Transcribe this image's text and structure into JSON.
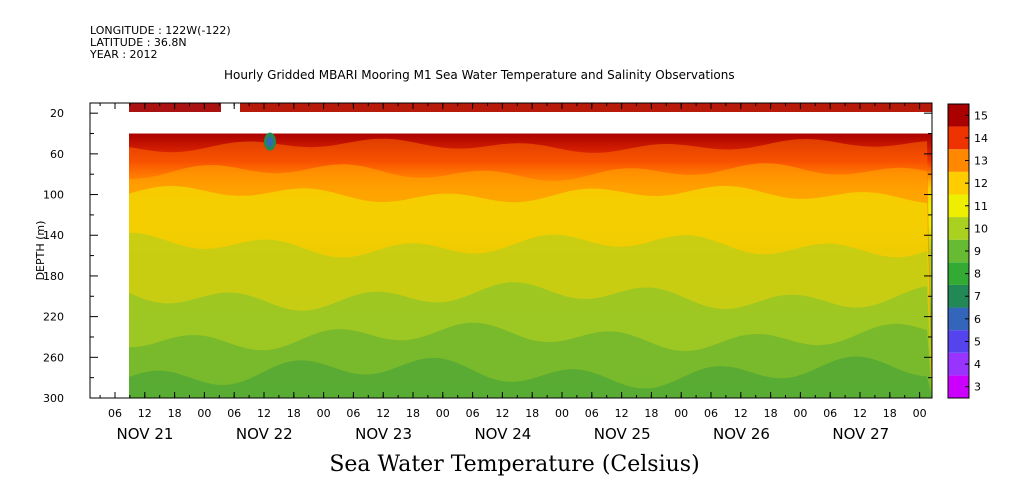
{
  "header": {
    "longitude": "LONGITUDE : 122W(-122)",
    "latitude": "LATITUDE : 36.8N",
    "year": "YEAR : 2012"
  },
  "title": "Hourly Gridded MBARI Mooring M1 Sea Water Temperature and Salinity Observations",
  "footer_title": "Sea Water Temperature (Celsius)",
  "chart_data": {
    "type": "heatmap",
    "title": "Hourly Gridded MBARI Mooring M1 Sea Water Temperature and Salinity Observations",
    "xlabel": "",
    "ylabel": "DEPTH (m)",
    "colorbar_label": "Sea Water Temperature (Celsius)",
    "y_ticks": [
      "20",
      "60",
      "100",
      "140",
      "180",
      "220",
      "260",
      "300"
    ],
    "y_range": [
      300,
      10
    ],
    "hour_ticks": [
      "06",
      "12",
      "18",
      "00",
      "06",
      "12",
      "18",
      "00",
      "06",
      "12",
      "18",
      "00",
      "06",
      "12",
      "18",
      "00",
      "06",
      "12",
      "18",
      "00",
      "06",
      "12",
      "18",
      "00",
      "06",
      "12",
      "18",
      "00"
    ],
    "day_labels": [
      "NOV 21",
      "NOV 22",
      "NOV 23",
      "NOV 24",
      "NOV 25",
      "NOV 26",
      "NOV 27"
    ],
    "colorbar_ticks": [
      "3",
      "4",
      "5",
      "6",
      "7",
      "8",
      "9",
      "10",
      "11",
      "12",
      "13",
      "14",
      "15"
    ],
    "colorbar_range": [
      3,
      15
    ],
    "colors": {
      "c3": "#cc00ff",
      "c4": "#9933ff",
      "c5": "#5544ee",
      "c6": "#3366bb",
      "c7": "#228855",
      "c8": "#33aa33",
      "c9": "#66bb33",
      "c10": "#aad020",
      "c11": "#eeee00",
      "c12": "#ffcc00",
      "c13": "#ff8800",
      "c14": "#ee3300",
      "c15": "#aa0000"
    },
    "depth_profile": [
      {
        "depth": 10,
        "temp": 14.8
      },
      {
        "depth": 40,
        "temp": 13.8
      },
      {
        "depth": 55,
        "temp": 13.0
      },
      {
        "depth": 70,
        "temp": 12.2
      },
      {
        "depth": 90,
        "temp": 11.4
      },
      {
        "depth": 110,
        "temp": 10.9
      },
      {
        "depth": 140,
        "temp": 10.2
      },
      {
        "depth": 180,
        "temp": 9.6
      },
      {
        "depth": 220,
        "temp": 9.0
      },
      {
        "depth": 260,
        "temp": 8.6
      },
      {
        "depth": 300,
        "temp": 8.2
      }
    ],
    "grid": false
  }
}
